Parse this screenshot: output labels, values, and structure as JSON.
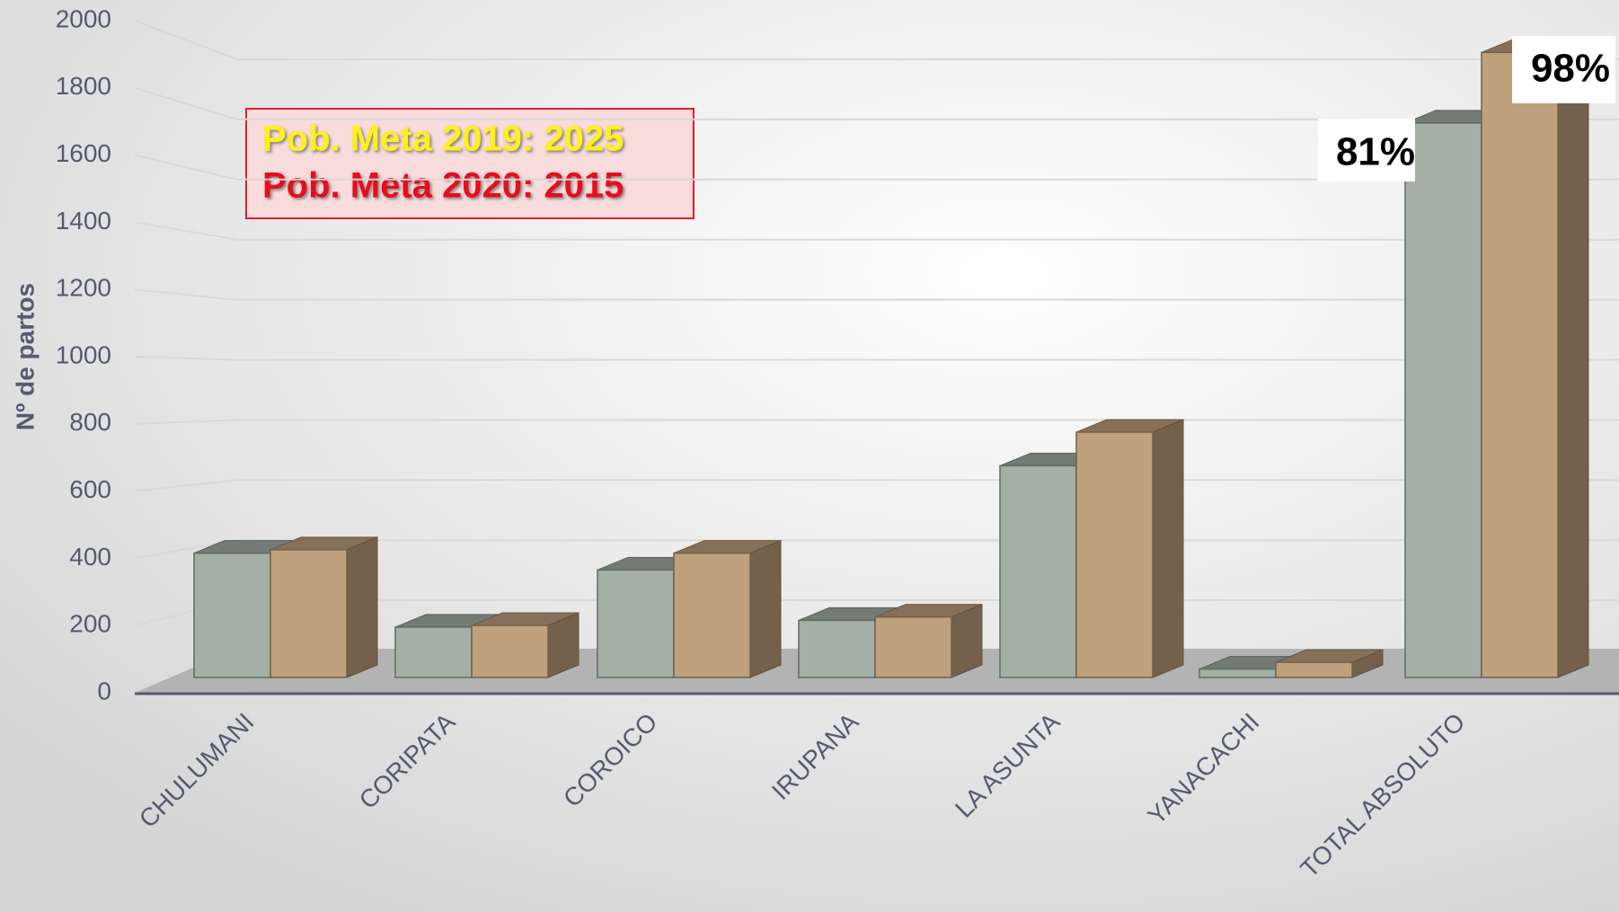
{
  "chart_data": {
    "type": "bar3d",
    "y_label": "Nº de partos",
    "categories": [
      "CHULUMANI",
      "CORIPATA",
      "COROICO",
      "IRUPANA",
      "LA ASUNTA",
      "YANACACHI",
      "TOTAL  ABSOLUTO"
    ],
    "series": [
      {
        "color": "#a4b0a6",
        "values": [
          370,
          150,
          320,
          170,
          630,
          25,
          1650
        ]
      },
      {
        "color": "#c0a17d",
        "values": [
          380,
          155,
          370,
          180,
          730,
          45,
          1860
        ]
      }
    ],
    "ylim": [
      0,
      2000
    ],
    "yticks": [
      0,
      200,
      400,
      600,
      800,
      1000,
      1200,
      1400,
      1600,
      1800,
      2000
    ],
    "grid": true,
    "text_box": [
      "Pob. Meta 2019: 2025",
      "Pob. Meta 2020: 2015"
    ],
    "annotations": [
      "81%",
      "98%"
    ]
  }
}
